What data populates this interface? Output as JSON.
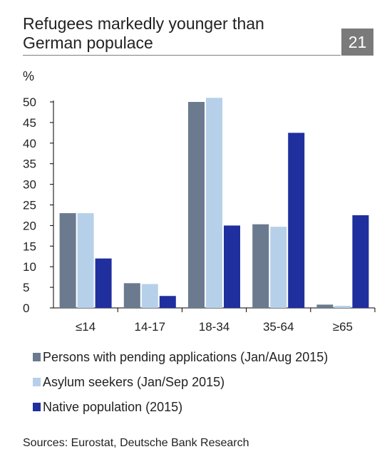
{
  "header": {
    "title_line1": "Refugees markedly younger than",
    "title_line2": "German populace",
    "badge": "21"
  },
  "footer": {
    "source": "Sources: Eurostat, Deutsche Bank Research"
  },
  "chart_data": {
    "type": "bar",
    "ylabel": "%",
    "ylim": [
      0,
      50
    ],
    "yticks": [
      0,
      5,
      10,
      15,
      20,
      25,
      30,
      35,
      40,
      45,
      50
    ],
    "categories": [
      "≤14",
      "14-17",
      "18-34",
      "35-64",
      "≥65"
    ],
    "legend_position": "bottom",
    "grid": false,
    "series": [
      {
        "name": "Persons with pending applications (Jan/Aug 2015)",
        "color": "#6b7a8f",
        "values": [
          23,
          6,
          50,
          20.3,
          0.8
        ]
      },
      {
        "name": "Asylum seekers (Jan/Sep 2015)",
        "color": "#b7d0ea",
        "values": [
          23,
          5.8,
          51,
          19.7,
          0.5
        ]
      },
      {
        "name": "Native population (2015)",
        "color": "#1f2f9e",
        "values": [
          12,
          2.9,
          20,
          42.5,
          22.5
        ]
      }
    ]
  }
}
